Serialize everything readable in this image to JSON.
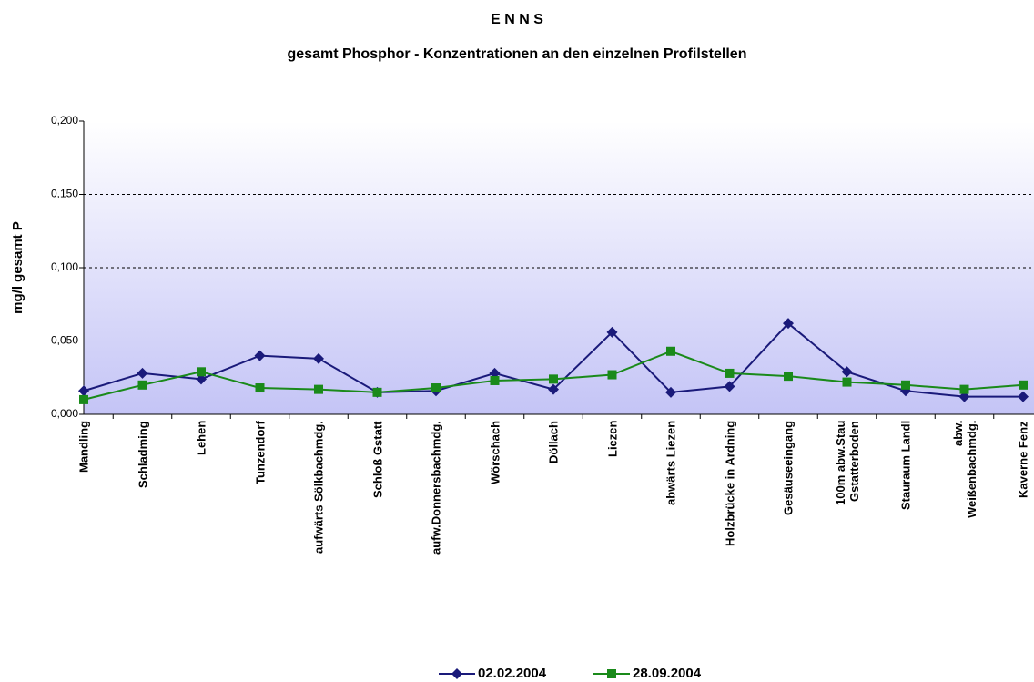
{
  "chart_data": {
    "type": "line",
    "title": "E N N S",
    "subtitle": "gesamt Phosphor - Konzentrationen an den einzelnen Profilstellen",
    "ylabel": "mg/l gesamt P",
    "categories": [
      "Mandling",
      "Schladming",
      "Lehen",
      "Tunzendorf",
      "aufwärts Sölkbachmdg.",
      "Schloß Gstatt",
      "aufw.Donnersbachmdg.",
      "Wörschach",
      "Döllach",
      "Liezen",
      "abwärts Liezen",
      "Holzbrücke in Ardning",
      "Gesäuseeingang",
      "100m abw.Stau\nGstatterboden",
      "Stauraum Landl",
      "abw.\nWeißenbachmdg.",
      "Kaverne Fenz"
    ],
    "series": [
      {
        "name": "02.02.2004",
        "color": "#1a1a7a",
        "marker": "diamond",
        "values": [
          0.016,
          0.028,
          0.024,
          0.04,
          0.038,
          0.015,
          0.016,
          0.028,
          0.017,
          0.056,
          0.015,
          0.019,
          0.062,
          0.029,
          0.016,
          0.012,
          0.012
        ]
      },
      {
        "name": "28.09.2004",
        "color": "#1a8a1a",
        "marker": "square",
        "values": [
          0.01,
          0.02,
          0.029,
          0.018,
          0.017,
          0.015,
          0.018,
          0.023,
          0.024,
          0.027,
          0.043,
          0.028,
          0.026,
          0.022,
          0.02,
          0.017,
          0.02
        ]
      }
    ],
    "ylim": [
      0,
      0.2
    ],
    "yticks": [
      {
        "value": 0,
        "label": "0,000"
      },
      {
        "value": 0.05,
        "label": "0,050"
      },
      {
        "value": 0.1,
        "label": "0,100"
      },
      {
        "value": 0.15,
        "label": "0,150"
      },
      {
        "value": 0.2,
        "label": "0,200"
      }
    ],
    "grid": true,
    "legend": "bottom"
  }
}
